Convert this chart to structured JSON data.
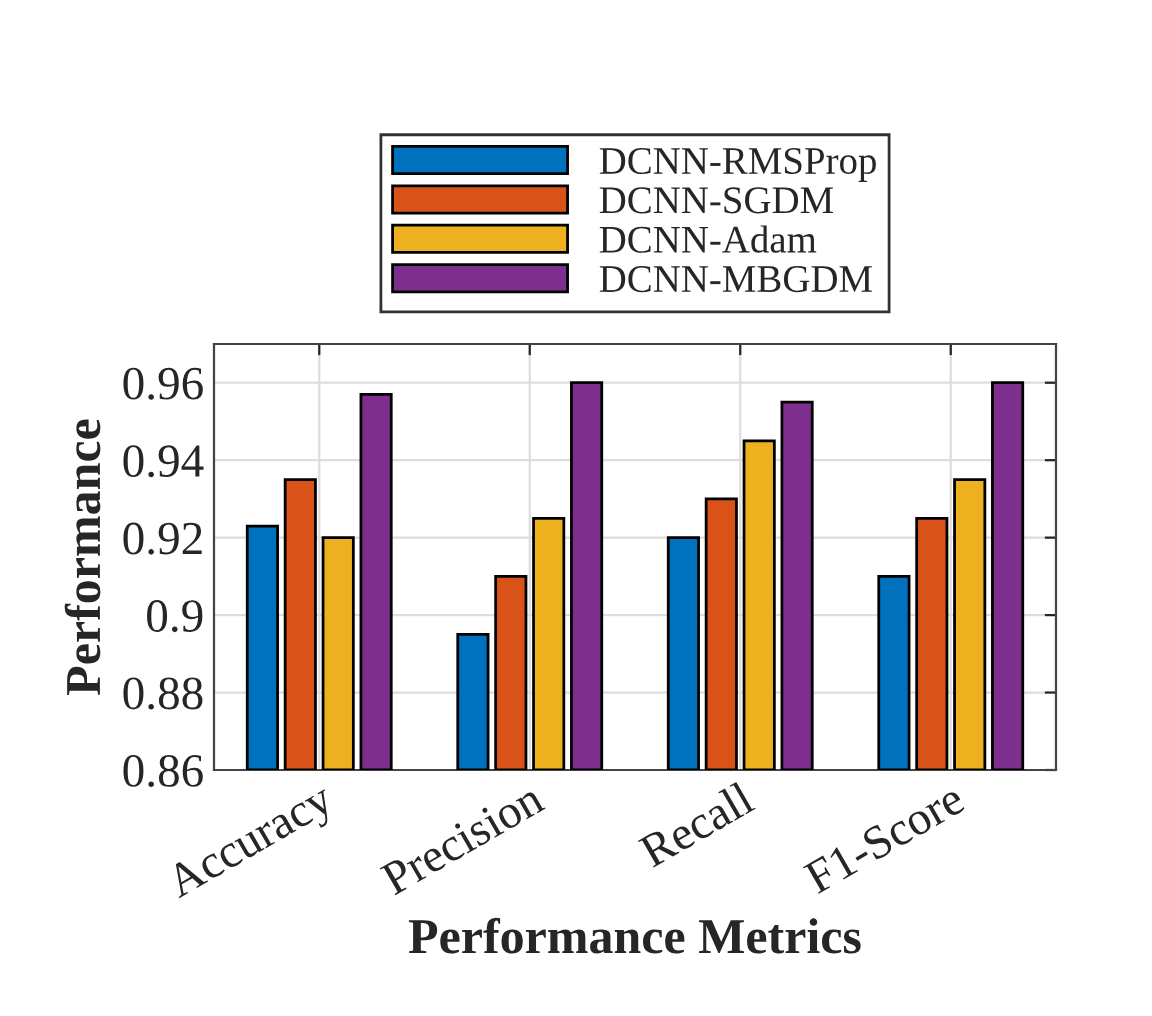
{
  "chart_data": {
    "type": "bar",
    "xlabel": "Performance Metrics",
    "ylabel": "Performance",
    "categories": [
      "Accuracy",
      "Precision",
      "Recall",
      "F1-Score"
    ],
    "series": [
      {
        "name": "DCNN-RMSProp",
        "color": "#0072bd",
        "values": [
          0.923,
          0.895,
          0.92,
          0.91
        ]
      },
      {
        "name": "DCNN-SGDM",
        "color": "#d95319",
        "values": [
          0.935,
          0.91,
          0.93,
          0.925
        ]
      },
      {
        "name": "DCNN-Adam",
        "color": "#edb120",
        "values": [
          0.92,
          0.925,
          0.945,
          0.935
        ]
      },
      {
        "name": "DCNN-MBGDM",
        "color": "#7e2f8e",
        "values": [
          0.957,
          0.96,
          0.955,
          0.96
        ]
      }
    ],
    "ylim": [
      0.86,
      0.97
    ],
    "yticks": [
      0.86,
      0.88,
      0.9,
      0.92,
      0.94,
      0.96
    ],
    "grid": true,
    "legend": "top"
  }
}
